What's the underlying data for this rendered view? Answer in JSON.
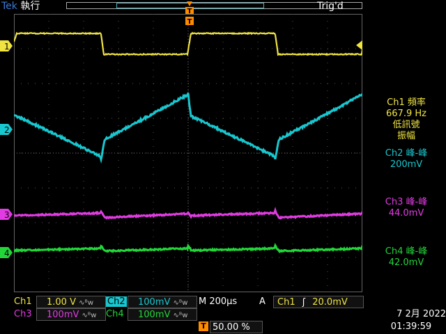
{
  "header": {
    "brand": "Tek",
    "mode": "執行",
    "status": "Trig'd"
  },
  "trigger": {
    "marker": "T"
  },
  "channels": [
    {
      "num": "1",
      "color": "#f0e442"
    },
    {
      "num": "2",
      "color": "#18c8d0"
    },
    {
      "num": "3",
      "color": "#e23be3"
    },
    {
      "num": "4",
      "color": "#22d63a"
    }
  ],
  "measurements": {
    "ch1": {
      "line1": "Ch1 頻率",
      "line2": "667.9 Hz",
      "line3": "低訊號",
      "line4": "振幅"
    },
    "ch2": {
      "line1": "Ch2 峰-峰",
      "line2": "200mV"
    },
    "ch3": {
      "line1": "Ch3 峰-峰",
      "line2": "44.0mV"
    },
    "ch4": {
      "line1": "Ch4 峰-峰",
      "line2": "42.0mV"
    }
  },
  "status_bar": {
    "ch1_label": "Ch1",
    "ch1_scale": "1.00 V",
    "ch2_label": "Ch2",
    "ch2_scale": "100mV",
    "ch3_label": "Ch3",
    "ch3_scale": "100mV",
    "ch4_label": "Ch4",
    "ch4_scale": "100mV",
    "bw_icon": "∿ᴮw",
    "timebase": "M 200µs",
    "trig_mode": "A",
    "trig_source": "Ch1",
    "trig_slope": "ʃ",
    "trig_level": "20.0mV",
    "trig_pos": "50.00 %",
    "date": "7 2月  2022",
    "time": "01:39:59"
  }
}
